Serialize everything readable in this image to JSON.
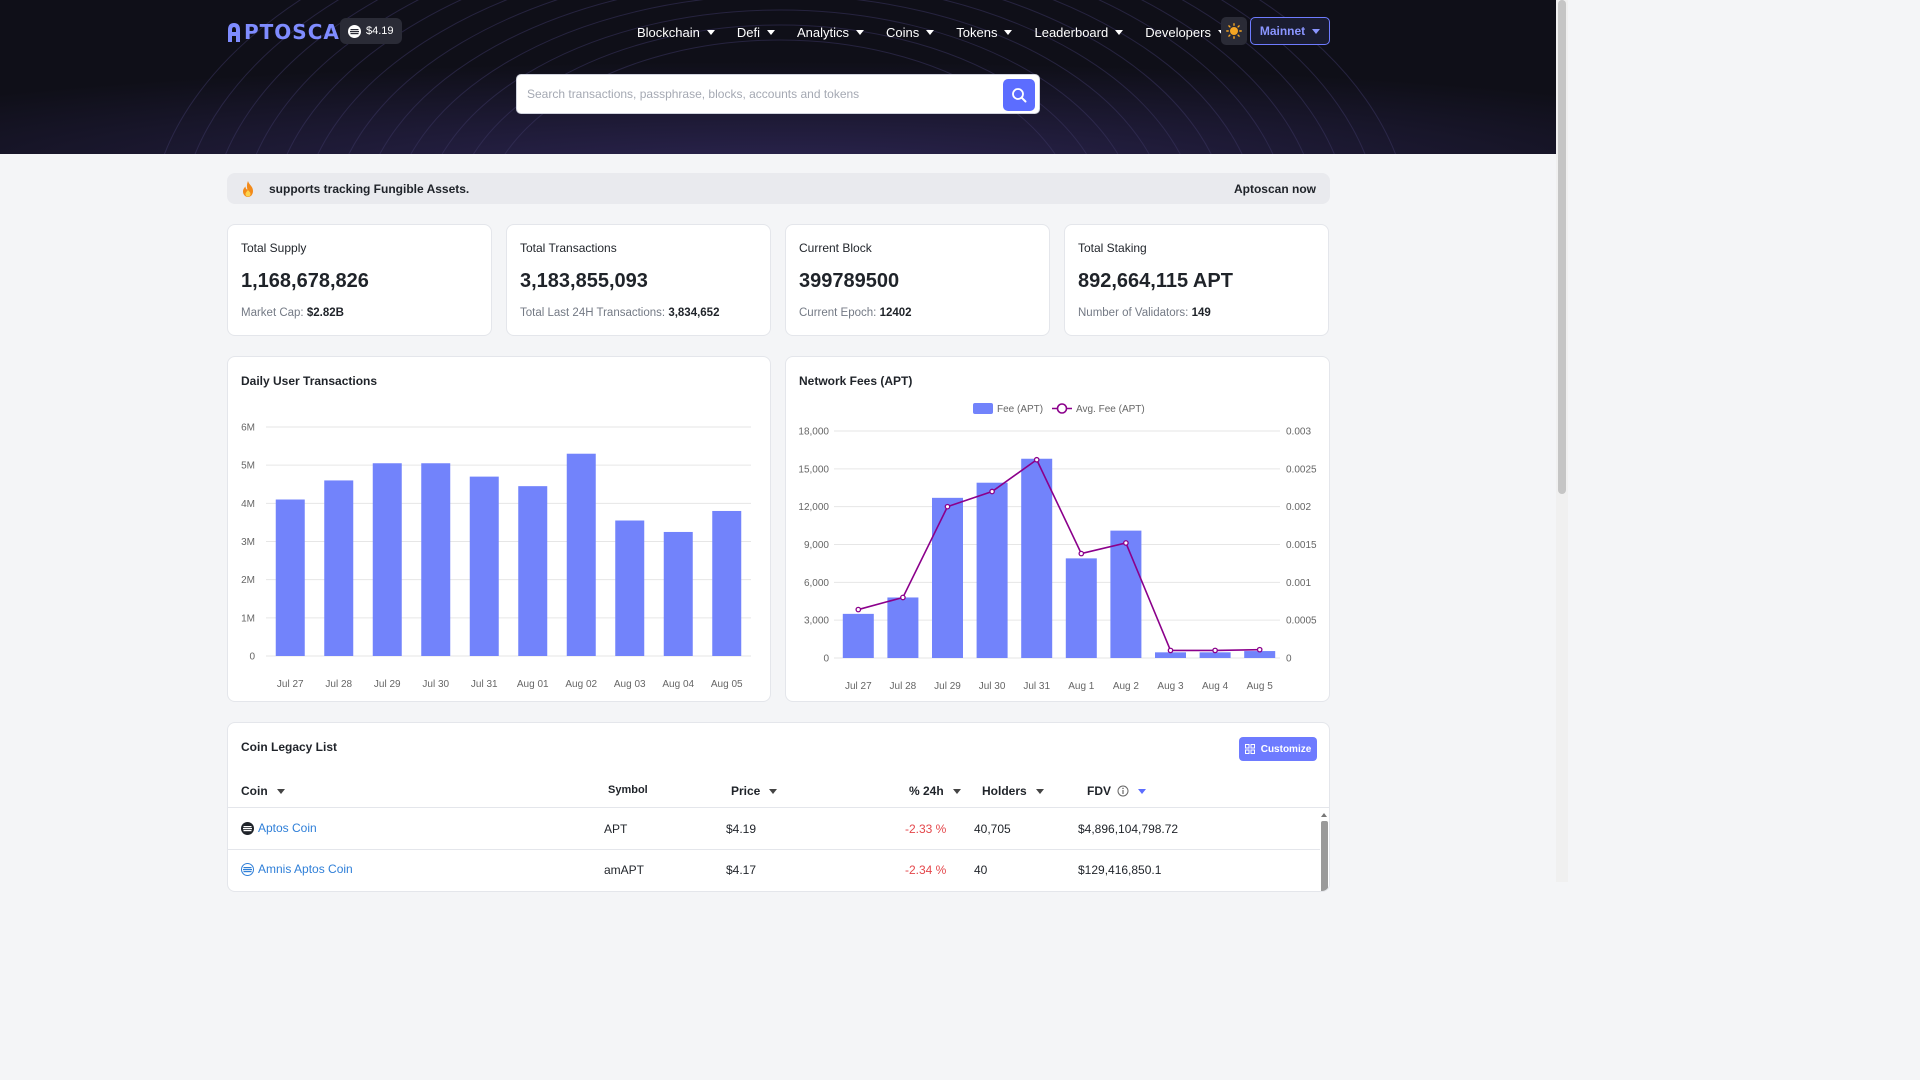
{
  "header": {
    "logo_text": "PTOSCAN",
    "apt_price": "$4.19",
    "nav": [
      "Blockchain",
      "Defi",
      "Analytics",
      "Coins",
      "Tokens",
      "Leaderboard",
      "Developers"
    ],
    "network": "Mainnet",
    "search_placeholder": "Search transactions, passphrase, blocks, accounts and tokens"
  },
  "banner": {
    "message": "supports tracking Fungible Assets.",
    "right": "Aptoscan now"
  },
  "stats": [
    {
      "label": "Total Supply",
      "value": "1,168,678,826",
      "sub_label": "Market Cap:",
      "sub_value": "$2.82B"
    },
    {
      "label": "Total Transactions",
      "value": "3,183,855,093",
      "sub_label": "Total Last 24H Transactions:",
      "sub_value": "3,834,652"
    },
    {
      "label": "Current Block",
      "value": "399789500",
      "sub_label": "Current Epoch:",
      "sub_value": "12402"
    },
    {
      "label": "Total Staking",
      "value": "892,664,115 APT",
      "sub_label": "Number of Validators:",
      "sub_value": "149"
    }
  ],
  "chart_data": [
    {
      "type": "bar",
      "title": "Daily User Transactions",
      "categories": [
        "Jul 27",
        "Jul 28",
        "Jul 29",
        "Jul 30",
        "Jul 31",
        "Aug 01",
        "Aug 02",
        "Aug 03",
        "Aug 04",
        "Aug 05"
      ],
      "values": [
        4100000,
        4600000,
        5050000,
        5050000,
        4700000,
        4450000,
        5300000,
        3550000,
        3250000,
        3800000
      ],
      "y_ticks": [
        "0",
        "1M",
        "2M",
        "3M",
        "4M",
        "5M",
        "6M"
      ],
      "ylim": [
        0,
        6000000
      ],
      "grid": true,
      "color": "#7283fb"
    },
    {
      "type": "bar",
      "title": "Network Fees (APT)",
      "categories": [
        "Jul 27",
        "Jul 28",
        "Jul 29",
        "Jul 30",
        "Jul 31",
        "Aug 1",
        "Aug 2",
        "Aug 3",
        "Aug 4",
        "Aug 5"
      ],
      "series": [
        {
          "name": "Fee (APT)",
          "type": "bar",
          "axis": "left",
          "color": "#7283fb",
          "values": [
            3500,
            4800,
            12700,
            13900,
            15800,
            7900,
            10100,
            450,
            450,
            550
          ]
        },
        {
          "name": "Avg. Fee (APT)",
          "type": "line",
          "axis": "right",
          "color": "#8b008b",
          "values": [
            0.00064,
            0.0008,
            0.002,
            0.0022,
            0.00262,
            0.00138,
            0.00152,
            0.0001,
            0.0001,
            0.00011
          ]
        }
      ],
      "y_ticks_left": [
        "0",
        "3,000",
        "6,000",
        "9,000",
        "12,000",
        "15,000",
        "18,000"
      ],
      "y_ticks_right": [
        "0",
        "0.0005",
        "0.001",
        "0.0015",
        "0.002",
        "0.0025",
        "0.003"
      ],
      "ylim_left": [
        0,
        18000
      ],
      "ylim_right": [
        0,
        0.003
      ],
      "legend": "top-center",
      "grid": true
    }
  ],
  "coins": {
    "title": "Coin Legacy List",
    "customize_label": "Customize",
    "headers": {
      "coin": "Coin",
      "symbol": "Symbol",
      "price": "Price",
      "change": "% 24h",
      "holders": "Holders",
      "fdv": "FDV"
    },
    "rows": [
      {
        "name": "Aptos Coin",
        "symbol": "APT",
        "price": "$4.19",
        "change": "-2.33 %",
        "holders": "40,705",
        "fdv": "$4,896,104,798.72"
      },
      {
        "name": "Amnis Aptos Coin",
        "symbol": "amAPT",
        "price": "$4.17",
        "change": "-2.34 %",
        "holders": "40",
        "fdv": "$129,416,850.1"
      }
    ]
  }
}
